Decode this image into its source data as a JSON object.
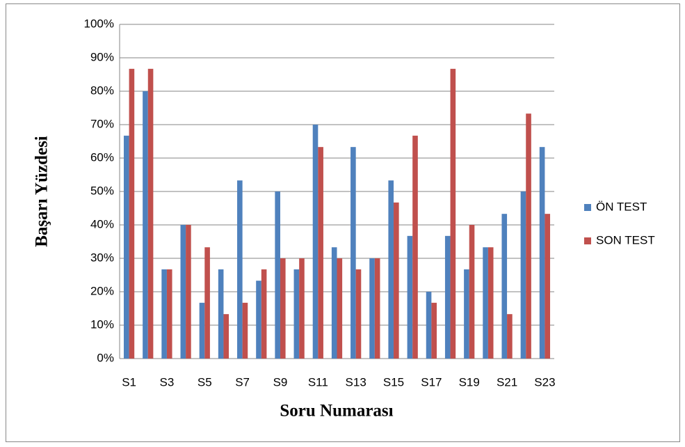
{
  "chart_data": {
    "type": "bar",
    "y_label": "Başarı Yüzdesi",
    "x_label": "Soru Numarası",
    "categories": [
      "S1",
      null,
      "S3",
      null,
      "S5",
      null,
      "S7",
      null,
      "S9",
      null,
      "S11",
      null,
      "S13",
      null,
      "S15",
      null,
      "S17",
      null,
      "S19",
      null,
      "S21",
      null,
      "S23"
    ],
    "series": [
      {
        "name": "ÖN TEST",
        "color": "#4f81bd",
        "values": [
          66.7,
          80,
          26.7,
          40,
          16.7,
          26.7,
          53.3,
          23.3,
          50,
          26.7,
          70,
          33.3,
          63.3,
          30,
          53.3,
          36.7,
          20,
          36.7,
          26.7,
          33.3,
          43.3,
          50,
          63.3
        ]
      },
      {
        "name": "SON TEST",
        "color": "#c0504d",
        "values": [
          86.7,
          86.7,
          26.7,
          40,
          33.3,
          13.3,
          16.7,
          26.7,
          30,
          30,
          63.3,
          30,
          26.7,
          30,
          46.7,
          66.7,
          16.7,
          86.7,
          40,
          33.3,
          13.3,
          73.3,
          43.3
        ]
      }
    ],
    "ylim": [
      0,
      100
    ],
    "yticks": [
      {
        "value": 0,
        "label": "0%"
      },
      {
        "value": 10,
        "label": "10%"
      },
      {
        "value": 20,
        "label": "20%"
      },
      {
        "value": 30,
        "label": "30%"
      },
      {
        "value": 40,
        "label": "40%"
      },
      {
        "value": 50,
        "label": "50%"
      },
      {
        "value": 60,
        "label": "60%"
      },
      {
        "value": 70,
        "label": "70%"
      },
      {
        "value": 80,
        "label": "80%"
      },
      {
        "value": 90,
        "label": "90%"
      },
      {
        "value": 100,
        "label": "100%"
      }
    ],
    "grid": true,
    "legend": "right"
  }
}
